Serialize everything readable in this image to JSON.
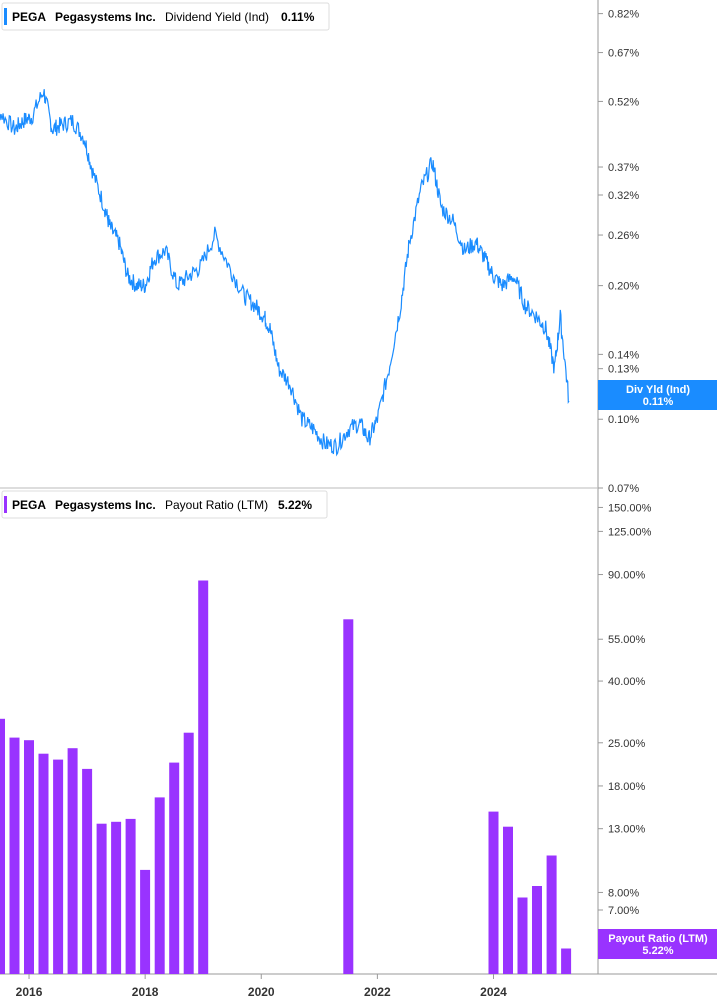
{
  "chart_data": [
    {
      "type": "line",
      "ticker": "PEGA",
      "company": "Pegasystems Inc.",
      "metric": "Dividend Yield (Ind)",
      "current_value": "0.11%",
      "tag_label": "Div Yld (Ind)",
      "tag_value": "0.11%",
      "color": "#1a8cff",
      "y_scale": "log",
      "ylim": [
        0.07,
        0.88
      ],
      "y_ticks": [
        0.82,
        0.67,
        0.52,
        0.37,
        0.32,
        0.26,
        0.2,
        0.14,
        0.13,
        0.1,
        0.07
      ],
      "y_tick_labels": [
        "0.82%",
        "0.67%",
        "0.52%",
        "0.37%",
        "0.32%",
        "0.26%",
        "0.20%",
        "0.14%",
        "0.13%",
        "0.10%",
        "0.07%"
      ],
      "x": [
        2015.3,
        2015.5,
        2015.75,
        2015.9,
        2016.05,
        2016.25,
        2016.4,
        2016.55,
        2016.75,
        2016.95,
        2017.1,
        2017.3,
        2017.4,
        2017.55,
        2017.7,
        2017.85,
        2018.0,
        2018.15,
        2018.35,
        2018.55,
        2018.75,
        2018.95,
        2019.2,
        2019.45,
        2019.7,
        2019.9,
        2020.05,
        2020.15,
        2020.3,
        2020.5,
        2020.7,
        2020.9,
        2021.1,
        2021.3,
        2021.5,
        2021.7,
        2021.85,
        2022.0,
        2022.2,
        2022.4,
        2022.55,
        2022.75,
        2022.95,
        2023.1,
        2023.3,
        2023.5,
        2023.7,
        2023.85,
        2024.0,
        2024.15,
        2024.35,
        2024.55,
        2024.75,
        2024.9,
        2025.05,
        2025.15,
        2025.3
      ],
      "values": [
        0.5,
        0.49,
        0.45,
        0.47,
        0.48,
        0.55,
        0.45,
        0.46,
        0.47,
        0.43,
        0.36,
        0.3,
        0.27,
        0.25,
        0.21,
        0.2,
        0.2,
        0.23,
        0.24,
        0.2,
        0.21,
        0.22,
        0.26,
        0.22,
        0.19,
        0.18,
        0.17,
        0.16,
        0.13,
        0.12,
        0.1,
        0.095,
        0.088,
        0.087,
        0.095,
        0.098,
        0.09,
        0.1,
        0.13,
        0.18,
        0.25,
        0.33,
        0.38,
        0.3,
        0.28,
        0.24,
        0.25,
        0.23,
        0.21,
        0.2,
        0.21,
        0.18,
        0.17,
        0.16,
        0.13,
        0.17,
        0.11
      ]
    },
    {
      "type": "bar",
      "ticker": "PEGA",
      "company": "Pegasystems Inc.",
      "metric": "Payout Ratio (LTM)",
      "current_value": "5.22%",
      "tag_label": "Payout Ratio (LTM)",
      "tag_value": "5.22%",
      "color": "#9933ff",
      "y_scale": "log",
      "ylim": [
        4.3,
        170
      ],
      "y_ticks": [
        150,
        125,
        90,
        55,
        40,
        25,
        18,
        13,
        8,
        7
      ],
      "y_tick_labels": [
        "150.00%",
        "125.00%",
        "90.00%",
        "55.00%",
        "40.00%",
        "25.00%",
        "18.00%",
        "13.00%",
        "8.00%",
        "7.00%"
      ],
      "x": [
        2015.5,
        2015.75,
        2016.0,
        2016.25,
        2016.5,
        2016.75,
        2017.0,
        2017.25,
        2017.5,
        2017.75,
        2018.0,
        2018.25,
        2018.5,
        2018.75,
        2019.0,
        2021.5,
        2024.0,
        2024.25,
        2024.5,
        2024.75,
        2025.0,
        2025.25
      ],
      "values": [
        30,
        26,
        25.5,
        23,
        22,
        24,
        20.5,
        13.5,
        13.7,
        14,
        9.5,
        16.5,
        21.5,
        27,
        86,
        64,
        14.8,
        13.2,
        7.7,
        8.4,
        10.6,
        5.22
      ]
    }
  ],
  "x_axis": {
    "range": [
      2015.5,
      2025.8
    ],
    "ticks": [
      2016,
      2018,
      2020,
      2022,
      2024
    ],
    "tick_labels": [
      "2016",
      "2018",
      "2020",
      "2022",
      "2024"
    ]
  }
}
